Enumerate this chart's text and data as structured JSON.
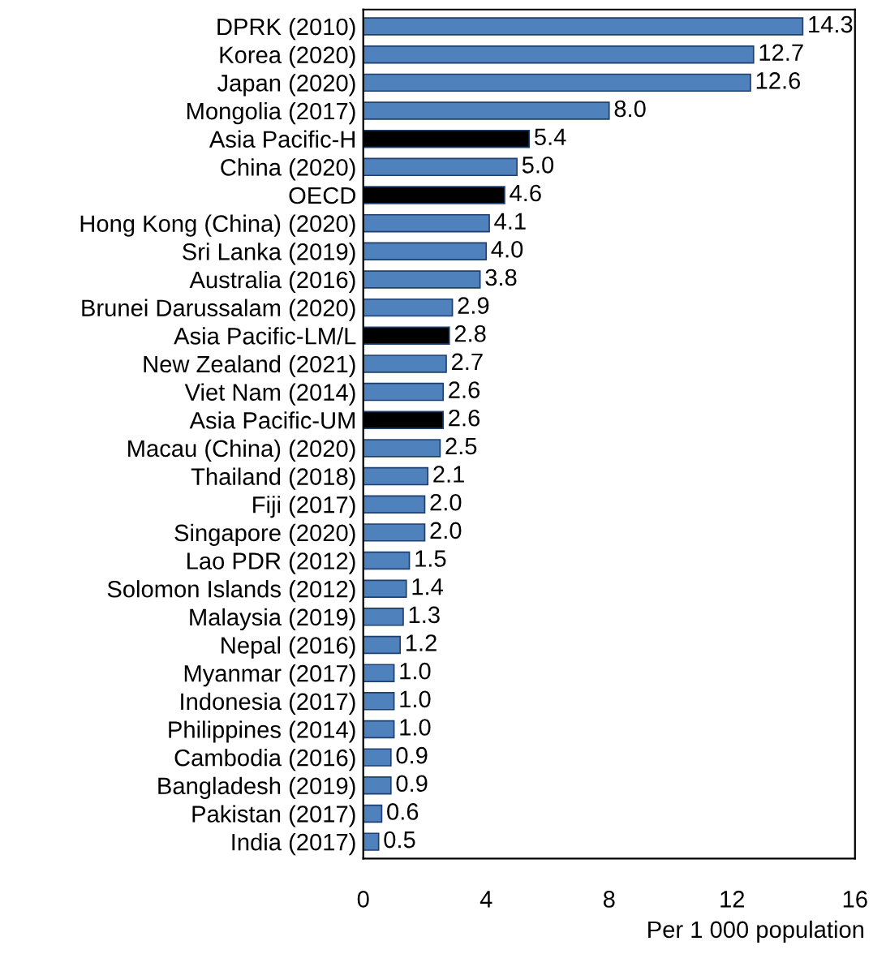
{
  "chart_data": {
    "type": "bar",
    "orientation": "horizontal",
    "xlabel": "Per 1 000 population",
    "categories": [
      "DPRK (2010)",
      "Korea (2020)",
      "Japan (2020)",
      "Mongolia (2017)",
      "Asia Pacific-H",
      "China (2020)",
      "OECD",
      "Hong Kong (China) (2020)",
      "Sri Lanka (2019)",
      "Australia (2016)",
      "Brunei Darussalam (2020)",
      "Asia Pacific-LM/L",
      "New Zealand (2021)",
      "Viet Nam (2014)",
      "Asia Pacific-UM",
      "Macau (China) (2020)",
      "Thailand (2018)",
      "Fiji (2017)",
      "Singapore (2020)",
      "Lao PDR (2012)",
      "Solomon Islands (2012)",
      "Malaysia (2019)",
      "Nepal (2016)",
      "Myanmar (2017)",
      "Indonesia (2017)",
      "Philippines (2014)",
      "Cambodia (2016)",
      "Bangladesh (2019)",
      "Pakistan (2017)",
      "India (2017)"
    ],
    "values": [
      14.3,
      12.7,
      12.6,
      8.0,
      5.4,
      5.0,
      4.6,
      4.1,
      4.0,
      3.8,
      2.9,
      2.8,
      2.7,
      2.6,
      2.6,
      2.5,
      2.1,
      2.0,
      2.0,
      1.5,
      1.4,
      1.3,
      1.2,
      1.0,
      1.0,
      1.0,
      0.9,
      0.9,
      0.6,
      0.5
    ],
    "value_labels": [
      "14.3",
      "12.7",
      "12.6",
      "8.0",
      "5.4",
      "5.0",
      "4.6",
      "4.1",
      "4.0",
      "3.8",
      "2.9",
      "2.8",
      "2.7",
      "2.6",
      "2.6",
      "2.5",
      "2.1",
      "2.0",
      "2.0",
      "1.5",
      "1.4",
      "1.3",
      "1.2",
      "1.0",
      "1.0",
      "1.0",
      "0.9",
      "0.9",
      "0.6",
      "0.5"
    ],
    "colors": [
      "#4f81bd",
      "#4f81bd",
      "#4f81bd",
      "#4f81bd",
      "#000000",
      "#4f81bd",
      "#000000",
      "#4f81bd",
      "#4f81bd",
      "#4f81bd",
      "#4f81bd",
      "#000000",
      "#4f81bd",
      "#4f81bd",
      "#000000",
      "#4f81bd",
      "#4f81bd",
      "#4f81bd",
      "#4f81bd",
      "#4f81bd",
      "#4f81bd",
      "#4f81bd",
      "#4f81bd",
      "#4f81bd",
      "#4f81bd",
      "#4f81bd",
      "#4f81bd",
      "#4f81bd",
      "#4f81bd",
      "#4f81bd"
    ],
    "xlim": [
      0,
      16
    ],
    "xticks": [
      0,
      4,
      8,
      12,
      16
    ],
    "grid": false,
    "legend": false
  }
}
